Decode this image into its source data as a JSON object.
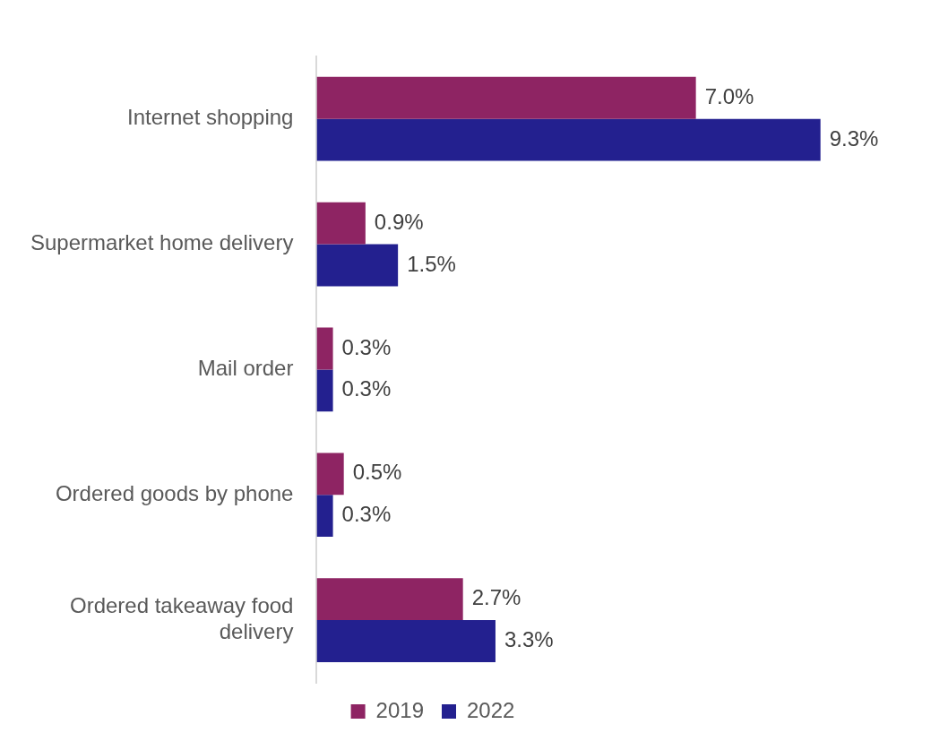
{
  "chart_data": {
    "type": "bar",
    "orientation": "horizontal",
    "categories": [
      "Internet shopping",
      "Supermarket home delivery",
      "Mail order",
      "Ordered goods by phone",
      "Ordered takeaway food delivery"
    ],
    "series": [
      {
        "name": "2019",
        "color": "#8e2463",
        "values": [
          7.0,
          0.9,
          0.3,
          0.5,
          2.7
        ],
        "value_labels": [
          "7.0%",
          "0.9%",
          "0.3%",
          "0.5%",
          "2.7%"
        ]
      },
      {
        "name": "2022",
        "color": "#23208f",
        "values": [
          9.3,
          1.5,
          0.3,
          0.3,
          3.3
        ],
        "value_labels": [
          "9.3%",
          "1.5%",
          "0.3%",
          "0.3%",
          "3.3%"
        ]
      }
    ],
    "legend": "bottom"
  }
}
